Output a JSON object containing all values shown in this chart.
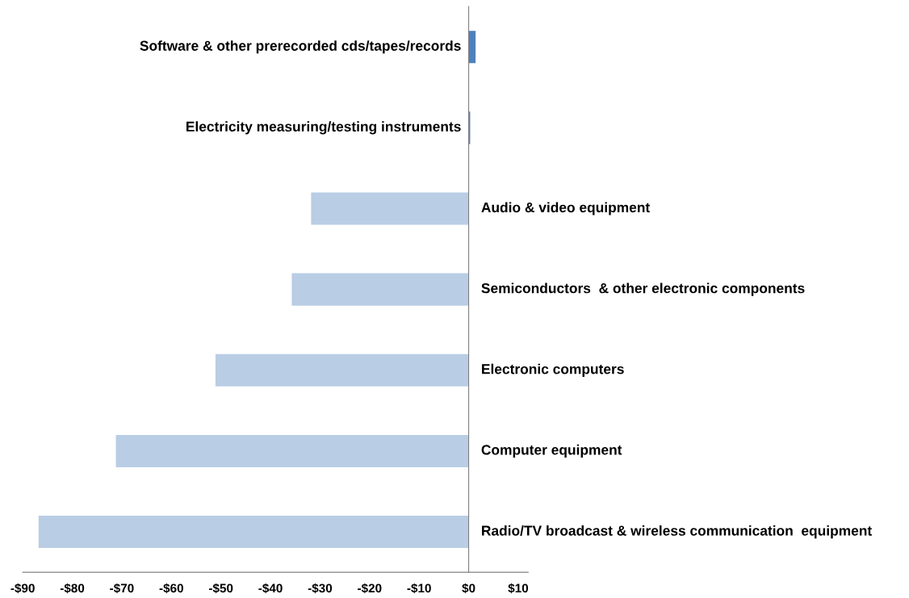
{
  "chart_data": {
    "type": "bar",
    "orientation": "horizontal",
    "categories": [
      "Software & other prerecorded cds/tapes/records",
      "Electricity measuring/testing instruments",
      "Audio & video equipment",
      "Semiconductors  & other electronic components",
      "Electronic computers",
      "Computer equipment",
      "Radio/TV broadcast & wireless communication  equipment"
    ],
    "values": [
      1.4,
      0.3,
      -31.8,
      -35.7,
      -51.1,
      -71.2,
      -86.8
    ],
    "colors": [
      "#4f81bd",
      "#4f81bd",
      "#b9cde5",
      "#b9cde5",
      "#b9cde5",
      "#b9cde5",
      "#b9cde5"
    ],
    "xlim": [
      -90,
      12
    ],
    "xticks": [
      {
        "value": -90,
        "label": "-$90"
      },
      {
        "value": -80,
        "label": "-$80"
      },
      {
        "value": -70,
        "label": "-$70"
      },
      {
        "value": -60,
        "label": "-$60"
      },
      {
        "value": -50,
        "label": "-$50"
      },
      {
        "value": -40,
        "label": "-$40"
      },
      {
        "value": -30,
        "label": "-$30"
      },
      {
        "value": -20,
        "label": "-$20"
      },
      {
        "value": -10,
        "label": "-$10"
      },
      {
        "value": 0,
        "label": "$0"
      },
      {
        "value": 10,
        "label": "$10"
      }
    ],
    "grid": false,
    "legend": false
  }
}
